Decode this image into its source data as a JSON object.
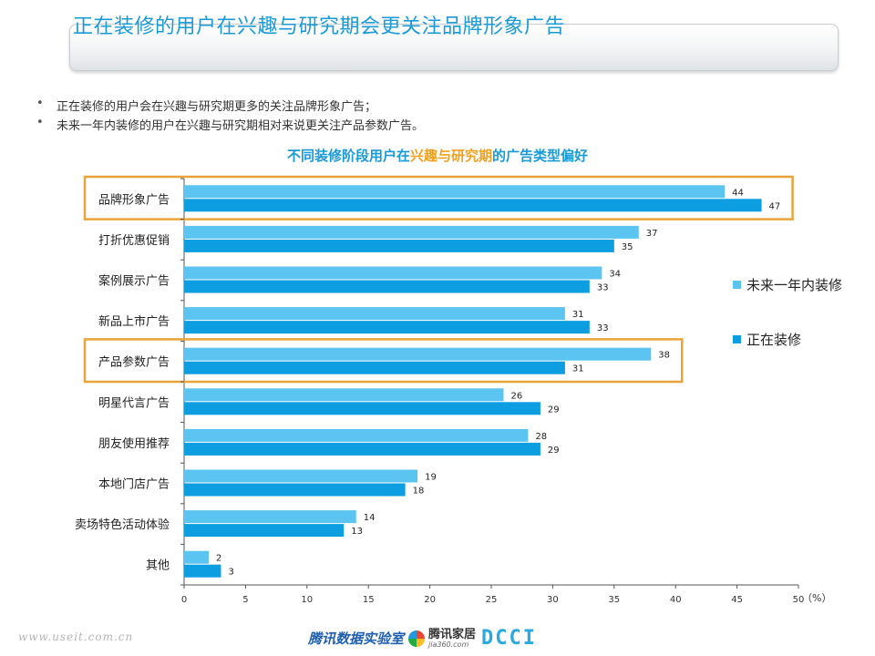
{
  "header": {
    "title": "正在装修的用户在兴趣与研究期会更关注品牌形象广告"
  },
  "bullets": [
    "正在装修的用户会在兴趣与研究期更多的关注品牌形象广告；",
    "未来一年内装修的用户在兴趣与研究期相对来说更关注产品参数广告。"
  ],
  "chart_title": {
    "part1": "不同装修阶段用户在",
    "highlight": "兴趣与研究期",
    "part2": "的广告类型偏好"
  },
  "colors": {
    "future": "#5bc4f0",
    "current": "#0c9ee0",
    "highlight_box": "#e8a33a",
    "title": "#1a9ad6"
  },
  "chart_data": {
    "type": "bar",
    "orientation": "horizontal",
    "categories": [
      "品牌形象广告",
      "打折优惠促销",
      "案例展示广告",
      "新品上市广告",
      "产品参数广告",
      "明星代言广告",
      "朋友使用推荐",
      "本地门店广告",
      "卖场特色活动体验",
      "其他"
    ],
    "series": [
      {
        "name": "未来一年内装修",
        "values": [
          44,
          37,
          34,
          31,
          38,
          26,
          28,
          19,
          14,
          2
        ]
      },
      {
        "name": "正在装修",
        "values": [
          47,
          35,
          33,
          33,
          31,
          29,
          29,
          18,
          13,
          3
        ]
      }
    ],
    "xlim": [
      0,
      50
    ],
    "xticks": [
      0,
      5,
      10,
      15,
      20,
      25,
      30,
      35,
      40,
      45,
      50
    ],
    "unit": "（%）",
    "highlighted_categories": [
      "品牌形象广告",
      "产品参数广告"
    ],
    "legend_position": "right"
  },
  "footer": {
    "website": "www.useit.com.cn",
    "logo1": "腾讯数据实验室",
    "logo2": "腾讯家居",
    "logo2_sub": "jia360.com",
    "logo3": "DCCI"
  }
}
